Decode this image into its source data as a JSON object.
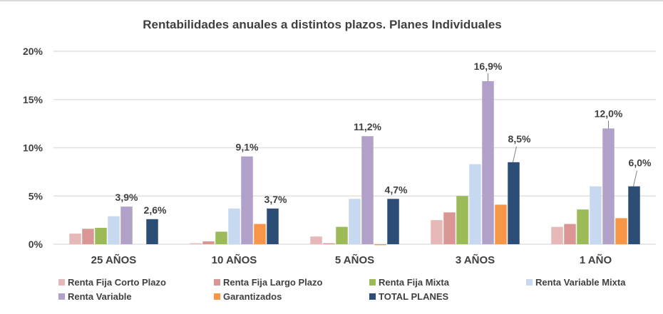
{
  "chart_data": {
    "type": "bar",
    "title": "Rentabilidades anuales a distintos plazos. Planes Individuales",
    "xlabel": "",
    "ylabel": "",
    "ylim": [
      0,
      20
    ],
    "yticks": [
      0,
      5,
      10,
      15,
      20
    ],
    "ytick_labels": [
      "0%",
      "5%",
      "10%",
      "15%",
      "20%"
    ],
    "grid": true,
    "legend_position": "bottom",
    "categories": [
      "25 AÑOS",
      "10 AÑOS",
      "5 AÑOS",
      "3 AÑOS",
      "1 AÑO"
    ],
    "series": [
      {
        "name": "Renta Fija Corto Plazo",
        "color": "#e6b9b8",
        "values": [
          1.1,
          0.1,
          0.8,
          2.5,
          1.8
        ],
        "labels": [
          null,
          null,
          null,
          null,
          null
        ]
      },
      {
        "name": "Renta Fija Largo Plazo",
        "color": "#da9694",
        "values": [
          1.6,
          0.3,
          0.1,
          3.3,
          2.1
        ],
        "labels": [
          null,
          null,
          null,
          null,
          null
        ]
      },
      {
        "name": "Renta Fija Mixta",
        "color": "#9bbb59",
        "values": [
          1.7,
          1.3,
          1.8,
          5.0,
          3.6
        ],
        "labels": [
          null,
          null,
          null,
          null,
          null
        ]
      },
      {
        "name": "Renta Variable Mixta",
        "color": "#c6d9f1",
        "values": [
          2.9,
          3.7,
          4.7,
          8.3,
          6.0
        ],
        "labels": [
          null,
          null,
          null,
          null,
          null
        ]
      },
      {
        "name": "Renta Variable",
        "color": "#b1a0c7",
        "values": [
          3.9,
          9.1,
          11.2,
          16.9,
          12.0
        ],
        "labels": [
          "3,9%",
          "9,1%",
          "11,2%",
          "16,9%",
          "12,0%"
        ]
      },
      {
        "name": "Garantizados",
        "color": "#f79646",
        "values": [
          0,
          2.1,
          -0.1,
          4.1,
          2.7
        ],
        "labels": [
          null,
          null,
          null,
          null,
          null
        ]
      },
      {
        "name": "TOTAL PLANES",
        "color": "#2c4d75",
        "values": [
          2.6,
          3.7,
          4.7,
          8.5,
          6.0
        ],
        "labels": [
          "2,6%",
          "3,7%",
          "4,7%",
          "8,5%",
          "6,0%"
        ]
      }
    ]
  }
}
